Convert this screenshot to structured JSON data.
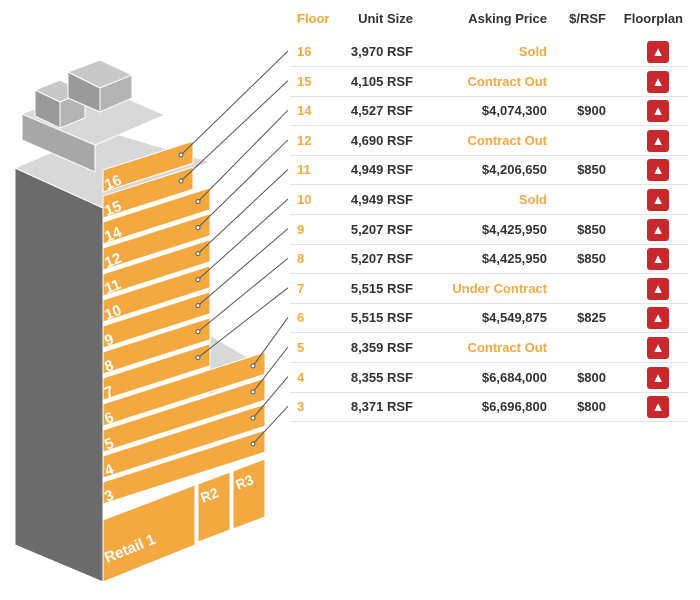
{
  "colors": {
    "accent": "#f4a940",
    "text": "#333333",
    "pdf_red": "#c8282b",
    "side_gray": "#6b6b6b",
    "top_gray": "#d8d8d8",
    "front_gray": "#a8a8a8"
  },
  "table": {
    "headers": {
      "floor": "Floor",
      "unit_size": "Unit Size",
      "asking_price": "Asking Price",
      "rsf": "$/RSF",
      "floorplan": "Floorplan"
    },
    "rows": [
      {
        "floor": "16",
        "unit_size": "3,970 RSF",
        "price": "Sold",
        "rsf": "",
        "floorplan_icon": "pdf-icon"
      },
      {
        "floor": "15",
        "unit_size": "4,105 RSF",
        "price": "Contract Out",
        "rsf": "",
        "floorplan_icon": "pdf-icon"
      },
      {
        "floor": "14",
        "unit_size": "4,527 RSF",
        "price": "$4,074,300",
        "rsf": "$900",
        "floorplan_icon": "pdf-icon"
      },
      {
        "floor": "12",
        "unit_size": "4,690 RSF",
        "price": "Contract Out",
        "rsf": "",
        "floorplan_icon": "pdf-icon"
      },
      {
        "floor": "11",
        "unit_size": "4,949 RSF",
        "price": "$4,206,650",
        "rsf": "$850",
        "floorplan_icon": "pdf-icon"
      },
      {
        "floor": "10",
        "unit_size": "4,949 RSF",
        "price": "Sold",
        "rsf": "",
        "floorplan_icon": "pdf-icon"
      },
      {
        "floor": "9",
        "unit_size": "5,207 RSF",
        "price": "$4,425,950",
        "rsf": "$850",
        "floorplan_icon": "pdf-icon"
      },
      {
        "floor": "8",
        "unit_size": "5,207 RSF",
        "price": "$4,425,950",
        "rsf": "$850",
        "floorplan_icon": "pdf-icon"
      },
      {
        "floor": "7",
        "unit_size": "5,515 RSF",
        "price": "Under Contract",
        "rsf": "",
        "floorplan_icon": "pdf-icon"
      },
      {
        "floor": "6",
        "unit_size": "5,515 RSF",
        "price": "$4,549,875",
        "rsf": "$825",
        "floorplan_icon": "pdf-icon"
      },
      {
        "floor": "5",
        "unit_size": "8,359 RSF",
        "price": "Contract Out",
        "rsf": "",
        "floorplan_icon": "pdf-icon"
      },
      {
        "floor": "4",
        "unit_size": "8,355 RSF",
        "price": "$6,684,000",
        "rsf": "$800",
        "floorplan_icon": "pdf-icon"
      },
      {
        "floor": "3",
        "unit_size": "8,371 RSF",
        "price": "$6,696,800",
        "rsf": "$800",
        "floorplan_icon": "pdf-icon"
      }
    ]
  },
  "building": {
    "floor_labels": [
      "16",
      "15",
      "14",
      "12",
      "11",
      "10",
      "9",
      "8",
      "7",
      "6",
      "5",
      "4",
      "3"
    ],
    "retail_labels": [
      "Retail 1",
      "R2",
      "R3"
    ]
  }
}
